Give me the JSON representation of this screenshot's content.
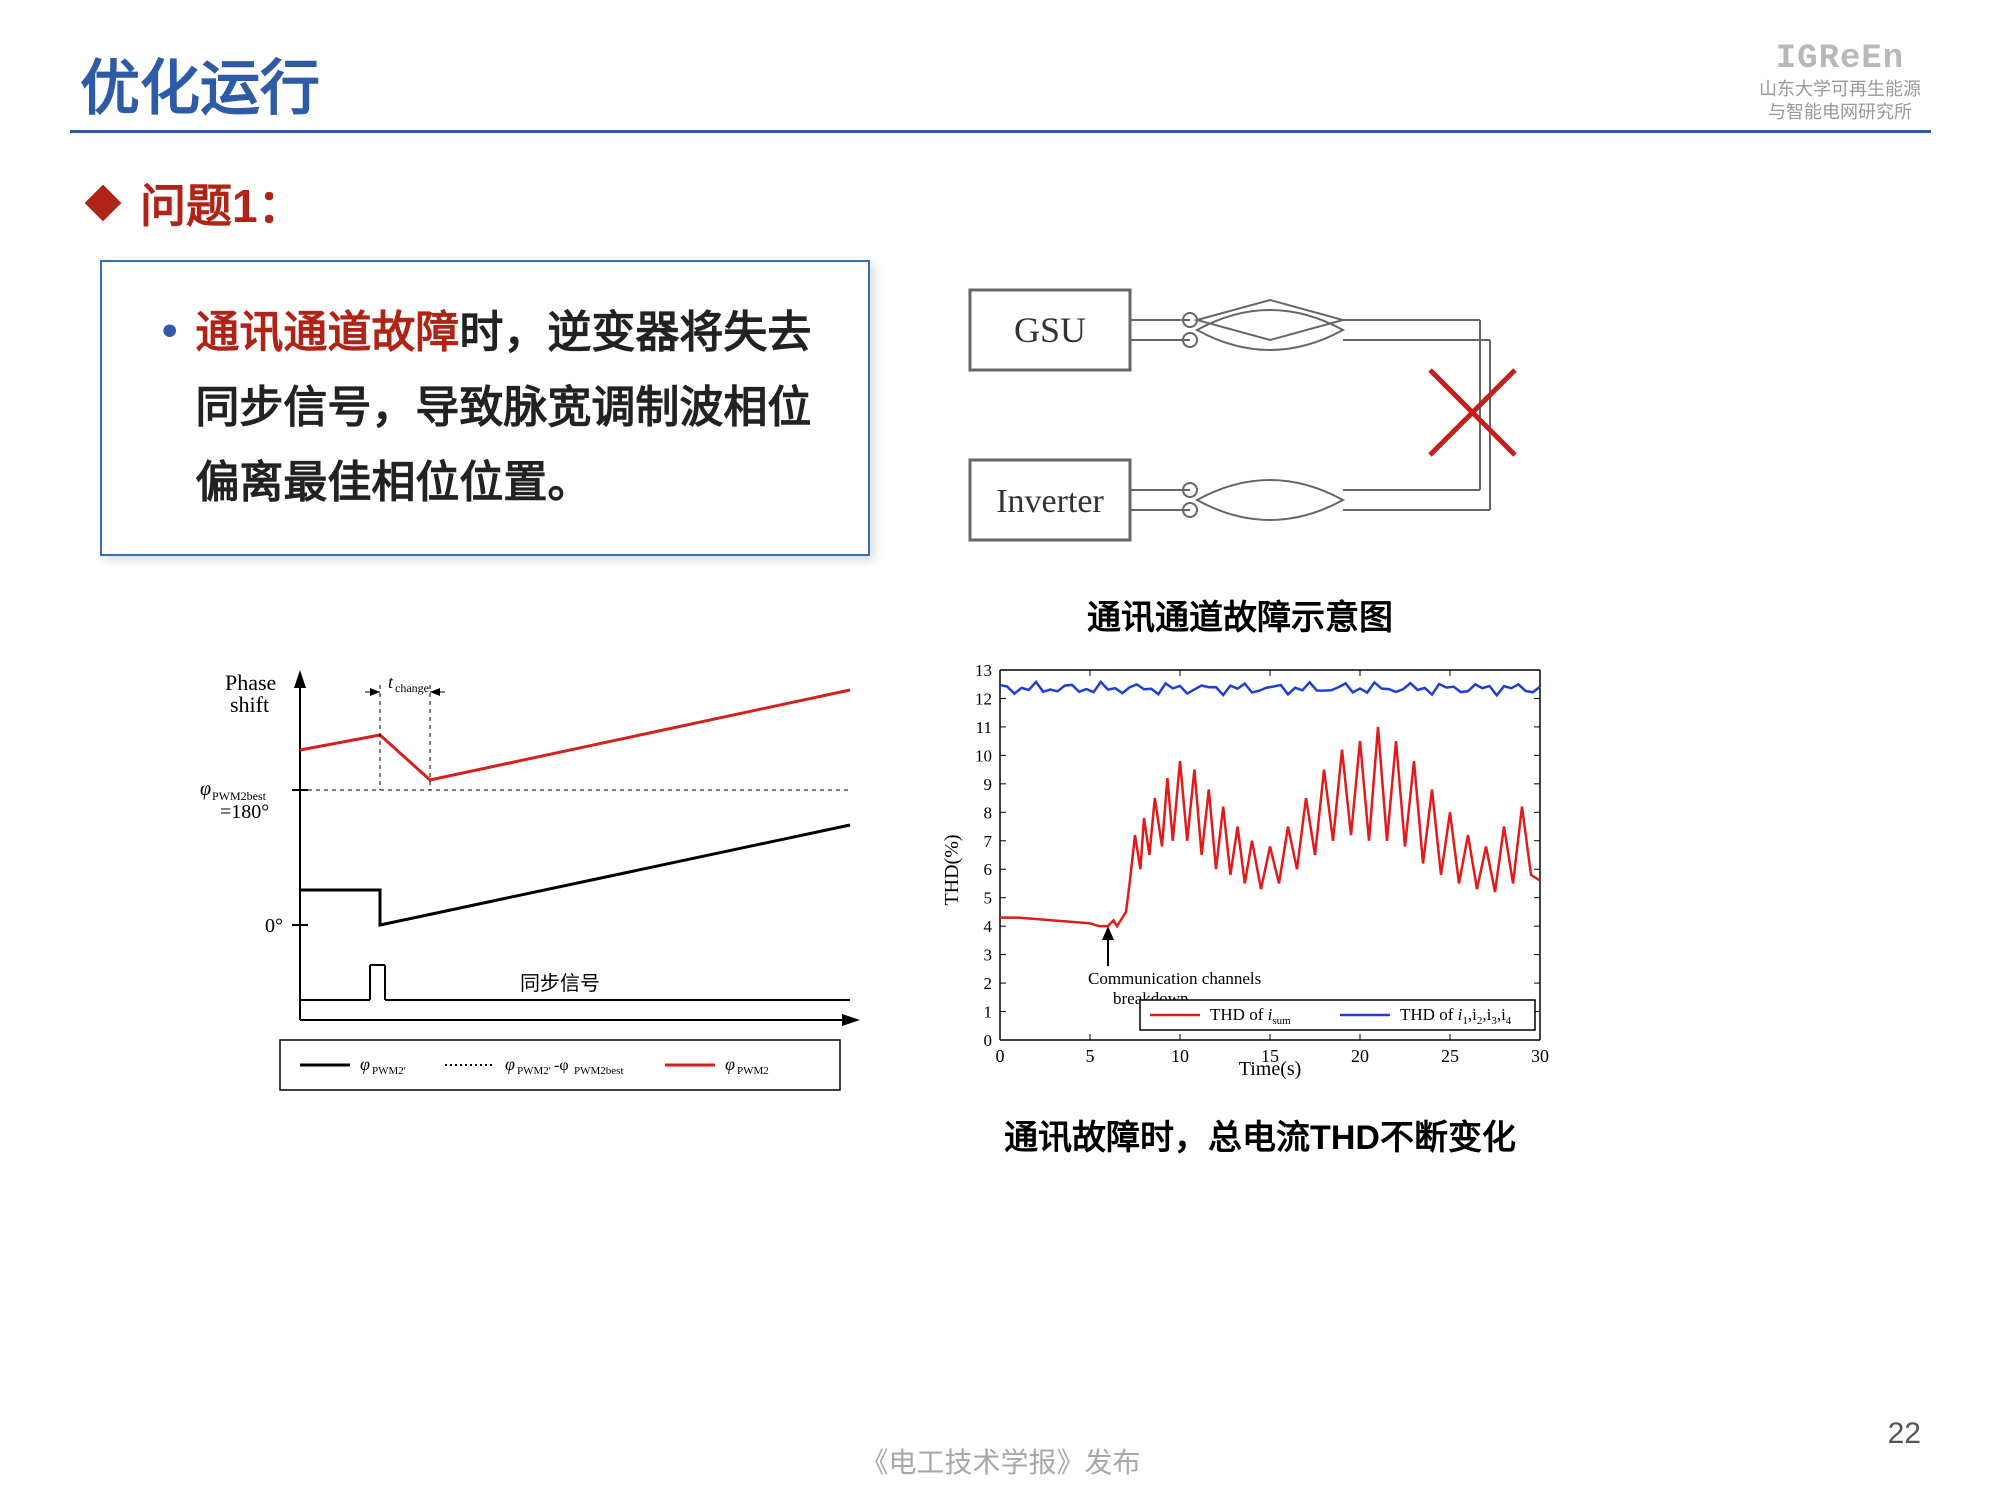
{
  "header": {
    "title": "优化运行",
    "logo_text": "IGReEn",
    "logo_sub1": "山东大学可再生能源",
    "logo_sub2": "与智能电网研究所"
  },
  "subhead": "问题1：",
  "textbox": {
    "highlight": "通讯通道故障",
    "rest": "时，逆变器将失去同步信号，导致脉宽调制波相位偏离最佳相位位置。"
  },
  "diagram1": {
    "box1": "GSU",
    "box2": "Inverter",
    "cross_color": "#c41e1e",
    "box_stroke": "#666666",
    "caption": "通讯通道故障示意图"
  },
  "phase_chart": {
    "ylabel1": "Phase",
    "ylabel2": "shift",
    "best_label": "φ",
    "best_sub": "PWM2best",
    "best_val": "=180°",
    "zero_label": "0°",
    "tchange": "t",
    "tchange_sub": "change",
    "sync_label": "同步信号",
    "legend": [
      {
        "label": "φ",
        "sub": "PWM2'",
        "color": "#000000",
        "style": "solid"
      },
      {
        "label": "φ",
        "sub": "PWM2'-φPWM2best",
        "color": "#000000",
        "style": "dotted"
      },
      {
        "label": "φ",
        "sub": "PWM2",
        "color": "#d4201f",
        "style": "solid"
      }
    ],
    "red_line_color": "#d4201f",
    "black_line_color": "#000000"
  },
  "thd_chart": {
    "ylabel": "THD(%)",
    "xlabel": "Time(s)",
    "ylim": [
      0,
      13
    ],
    "ytick_step": 1,
    "xlim": [
      0,
      30
    ],
    "xticks": [
      0,
      5,
      10,
      15,
      20,
      25,
      30
    ],
    "annotation1": "Communication channels",
    "annotation2": "breakdown",
    "legend_red": "THD of i",
    "legend_red_sub": "sum",
    "legend_blue": "THD of i",
    "legend_blue_sub": "1,i2,i3,i4",
    "red_color": "#e31a1c",
    "blue_color": "#1f3fd4",
    "caption": "通讯故障时，总电流THD不断变化",
    "red_data": [
      [
        0,
        4.3
      ],
      [
        1,
        4.3
      ],
      [
        2,
        4.25
      ],
      [
        3,
        4.2
      ],
      [
        4,
        4.15
      ],
      [
        5,
        4.1
      ],
      [
        5.5,
        4.0
      ],
      [
        6,
        4.0
      ],
      [
        6.3,
        4.2
      ],
      [
        6.5,
        4.0
      ],
      [
        6.8,
        4.3
      ],
      [
        7,
        4.5
      ],
      [
        7.2,
        5.5
      ],
      [
        7.5,
        7.2
      ],
      [
        7.8,
        6.0
      ],
      [
        8,
        7.8
      ],
      [
        8.3,
        6.5
      ],
      [
        8.6,
        8.5
      ],
      [
        9,
        6.8
      ],
      [
        9.3,
        9.2
      ],
      [
        9.6,
        7.0
      ],
      [
        10,
        9.8
      ],
      [
        10.4,
        7.0
      ],
      [
        10.8,
        9.5
      ],
      [
        11.2,
        6.5
      ],
      [
        11.6,
        8.8
      ],
      [
        12,
        6.0
      ],
      [
        12.4,
        8.2
      ],
      [
        12.8,
        5.8
      ],
      [
        13.2,
        7.5
      ],
      [
        13.6,
        5.5
      ],
      [
        14,
        7.0
      ],
      [
        14.5,
        5.3
      ],
      [
        15,
        6.8
      ],
      [
        15.5,
        5.5
      ],
      [
        16,
        7.5
      ],
      [
        16.5,
        6.0
      ],
      [
        17,
        8.5
      ],
      [
        17.5,
        6.5
      ],
      [
        18,
        9.5
      ],
      [
        18.5,
        7.0
      ],
      [
        19,
        10.2
      ],
      [
        19.5,
        7.2
      ],
      [
        20,
        10.5
      ],
      [
        20.5,
        7.0
      ],
      [
        21,
        11.0
      ],
      [
        21.5,
        7.0
      ],
      [
        22,
        10.5
      ],
      [
        22.5,
        6.8
      ],
      [
        23,
        9.8
      ],
      [
        23.5,
        6.2
      ],
      [
        24,
        8.8
      ],
      [
        24.5,
        5.8
      ],
      [
        25,
        8.0
      ],
      [
        25.5,
        5.5
      ],
      [
        26,
        7.2
      ],
      [
        26.5,
        5.3
      ],
      [
        27,
        6.8
      ],
      [
        27.5,
        5.2
      ],
      [
        28,
        7.5
      ],
      [
        28.5,
        5.5
      ],
      [
        29,
        8.2
      ],
      [
        29.5,
        5.8
      ],
      [
        30,
        5.6
      ]
    ],
    "blue_data": [
      [
        0,
        12.3
      ],
      [
        2,
        12.4
      ],
      [
        4,
        12.3
      ],
      [
        6,
        12.5
      ],
      [
        8,
        12.3
      ],
      [
        10,
        12.4
      ],
      [
        12,
        12.5
      ],
      [
        14,
        12.4
      ],
      [
        16,
        12.3
      ],
      [
        18,
        12.5
      ],
      [
        20,
        12.4
      ],
      [
        22,
        12.3
      ],
      [
        24,
        12.5
      ],
      [
        26,
        12.4
      ],
      [
        28,
        12.3
      ],
      [
        30,
        12.5
      ]
    ]
  },
  "footer": "《电工技术学报》发布",
  "page_num": "22"
}
